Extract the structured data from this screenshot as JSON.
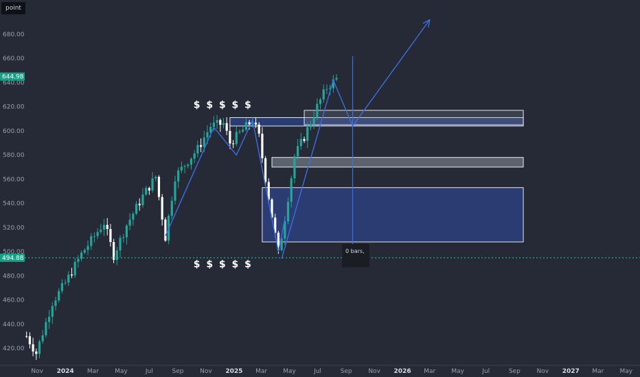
{
  "ticker": {
    "label": "point"
  },
  "annotations": {
    "dollar_signs_top": "$ $ $ $ $",
    "dollar_signs_bottom": "$ $ $ $ $",
    "tooltip_text": "0 bars,"
  },
  "colors": {
    "background": "#252a36",
    "up_candle": "#26a69a",
    "down_candle": "#ffffff",
    "projection_line": "#3d6ee0",
    "zone_fill": "#2d3f7e",
    "price_badge": "#16a085",
    "dotted_line": "#1fa58e"
  },
  "chart_data": {
    "type": "candlestick",
    "title": "",
    "ylim": [
      408,
      700
    ],
    "y_ticks": [
      420,
      440,
      460,
      480,
      500,
      520,
      540,
      560,
      580,
      600,
      620,
      640,
      660,
      680
    ],
    "y_tick_labels": [
      "420.00",
      "440.00",
      "460.00",
      "480.00",
      "500.00",
      "520.00",
      "540.00",
      "560.00",
      "580.00",
      "600.00",
      "620.00",
      "640.00",
      "660.00",
      "680.00"
    ],
    "x_ticks": [
      {
        "label": "Nov",
        "date": "2023-11-01",
        "year": false
      },
      {
        "label": "2024",
        "date": "2024-01-01",
        "year": true
      },
      {
        "label": "Mar",
        "date": "2024-03-01",
        "year": false
      },
      {
        "label": "May",
        "date": "2024-05-01",
        "year": false
      },
      {
        "label": "Jul",
        "date": "2024-07-01",
        "year": false
      },
      {
        "label": "Sep",
        "date": "2024-09-01",
        "year": false
      },
      {
        "label": "Nov",
        "date": "2024-11-01",
        "year": false
      },
      {
        "label": "2025",
        "date": "2025-01-01",
        "year": true
      },
      {
        "label": "Mar",
        "date": "2025-03-01",
        "year": false
      },
      {
        "label": "May",
        "date": "2025-05-01",
        "year": false
      },
      {
        "label": "Jul",
        "date": "2025-07-01",
        "year": false
      },
      {
        "label": "Sep",
        "date": "2025-09-01",
        "year": false
      },
      {
        "label": "Nov",
        "date": "2025-11-01",
        "year": false
      },
      {
        "label": "2026",
        "date": "2026-01-01",
        "year": true
      },
      {
        "label": "Mar",
        "date": "2026-03-01",
        "year": false
      },
      {
        "label": "May",
        "date": "2026-05-01",
        "year": false
      },
      {
        "label": "Jul",
        "date": "2026-07-01",
        "year": false
      },
      {
        "label": "Sep",
        "date": "2026-09-01",
        "year": false
      },
      {
        "label": "Nov",
        "date": "2026-11-01",
        "year": false
      },
      {
        "label": "2027",
        "date": "2027-01-01",
        "year": true
      },
      {
        "label": "Mar",
        "date": "2027-03-01",
        "year": false
      },
      {
        "label": "May",
        "date": "2027-05-01",
        "year": false
      }
    ],
    "x_range": [
      "2023-10-05",
      "2027-05-31"
    ],
    "current_price": {
      "value": 644.98,
      "label": "644.98"
    },
    "marked_level": {
      "value": 494.88,
      "label": "494.88"
    },
    "candles_anchor_path": [
      [
        "2023-10-09",
        430
      ],
      [
        "2023-10-30",
        416
      ],
      [
        "2023-12-04",
        458
      ],
      [
        "2024-01-01",
        474
      ],
      [
        "2024-02-05",
        498
      ],
      [
        "2024-03-25",
        524
      ],
      [
        "2024-04-15",
        497
      ],
      [
        "2024-05-13",
        522
      ],
      [
        "2024-06-17",
        546
      ],
      [
        "2024-07-15",
        562
      ],
      [
        "2024-08-05",
        512
      ],
      [
        "2024-08-26",
        562
      ],
      [
        "2024-09-16",
        572
      ],
      [
        "2024-10-14",
        585
      ],
      [
        "2024-11-11",
        604
      ],
      [
        "2024-12-09",
        606
      ],
      [
        "2024-12-23",
        590
      ],
      [
        "2025-01-13",
        598
      ],
      [
        "2025-02-10",
        609
      ],
      [
        "2025-02-24",
        595
      ],
      [
        "2025-03-10",
        561
      ],
      [
        "2025-04-07",
        498
      ],
      [
        "2025-04-21",
        528
      ],
      [
        "2025-05-12",
        579
      ],
      [
        "2025-06-02",
        595
      ],
      [
        "2025-06-30",
        620
      ],
      [
        "2025-07-21",
        636
      ],
      [
        "2025-08-11",
        643
      ]
    ],
    "zones": [
      {
        "name": "upper-zone",
        "x_start": "2024-12-23",
        "x_end": "2026-09-20",
        "y_low": 604,
        "y_high": 611,
        "style": "blue"
      },
      {
        "name": "upper-box",
        "x_start": "2025-06-02",
        "x_end": "2026-09-20",
        "y_low": 605,
        "y_high": 617,
        "style": "outline"
      },
      {
        "name": "mid-zone",
        "x_start": "2025-03-24",
        "x_end": "2026-09-20",
        "y_low": 570,
        "y_high": 578,
        "style": "gray"
      },
      {
        "name": "demand-zone",
        "x_start": "2025-03-03",
        "x_end": "2026-09-20",
        "y_low": 508,
        "y_high": 553,
        "style": "blue"
      }
    ],
    "projection_path_1": [
      [
        "2024-08-05",
        513
      ],
      [
        "2024-11-18",
        603
      ],
      [
        "2025-01-06",
        580
      ],
      [
        "2025-02-10",
        609
      ],
      [
        "2025-04-07",
        500
      ],
      [
        "2025-04-21",
        527
      ]
    ],
    "projection_path_2": [
      [
        "2025-04-14",
        494
      ],
      [
        "2025-08-04",
        642
      ],
      [
        "2025-09-15",
        604
      ],
      [
        "2026-03-01",
        692
      ]
    ],
    "vertical_marker": {
      "date": "2025-09-15",
      "y_top": 662,
      "y_bottom": 500
    },
    "dollar_top": {
      "date": "2024-12-08",
      "y": 619
    },
    "dollar_bottom": {
      "date": "2024-12-08",
      "y": 487
    }
  }
}
